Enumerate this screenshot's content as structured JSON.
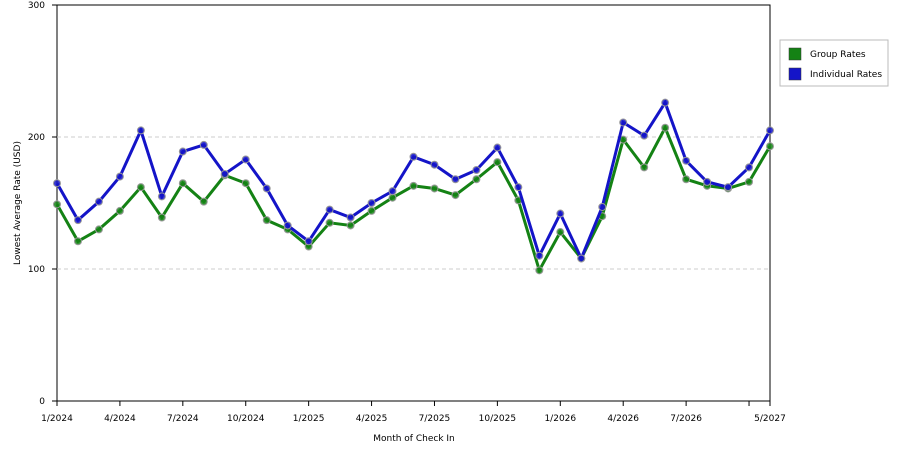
{
  "chart_data": {
    "type": "line",
    "x_label": "Month of Check In",
    "y_label": "Lowest Average Rate (USD)",
    "categories": [
      "1/2024",
      null,
      null,
      "4/2024",
      null,
      null,
      "7/2024",
      null,
      null,
      "10/2024",
      null,
      null,
      "1/2025",
      null,
      null,
      "4/2025",
      null,
      null,
      "7/2025",
      null,
      null,
      "10/2025",
      null,
      null,
      "1/2026",
      null,
      null,
      "4/2026",
      null,
      null,
      "7/2026",
      null,
      null,
      null,
      "5/2027"
    ],
    "series": [
      {
        "name": "Group Rates",
        "color": "#148214",
        "values": [
          149,
          121,
          130,
          144,
          162,
          139,
          165,
          151,
          171,
          165,
          137,
          130,
          117,
          135,
          133,
          144,
          154,
          163,
          161,
          156,
          168,
          181,
          152,
          99,
          128,
          108,
          140,
          198,
          177,
          207,
          168,
          163,
          161,
          166,
          193
        ]
      },
      {
        "name": "Individual Rates",
        "color": "#1414c8",
        "values": [
          165,
          137,
          151,
          170,
          205,
          155,
          189,
          194,
          172,
          183,
          161,
          133,
          121,
          145,
          139,
          150,
          159,
          185,
          179,
          168,
          175,
          192,
          162,
          110,
          142,
          108,
          147,
          211,
          201,
          226,
          182,
          166,
          162,
          177,
          205
        ]
      }
    ],
    "ylim": [
      0,
      300
    ],
    "yticks": [
      0,
      100,
      200,
      300
    ],
    "grid": true,
    "legend": "right"
  }
}
